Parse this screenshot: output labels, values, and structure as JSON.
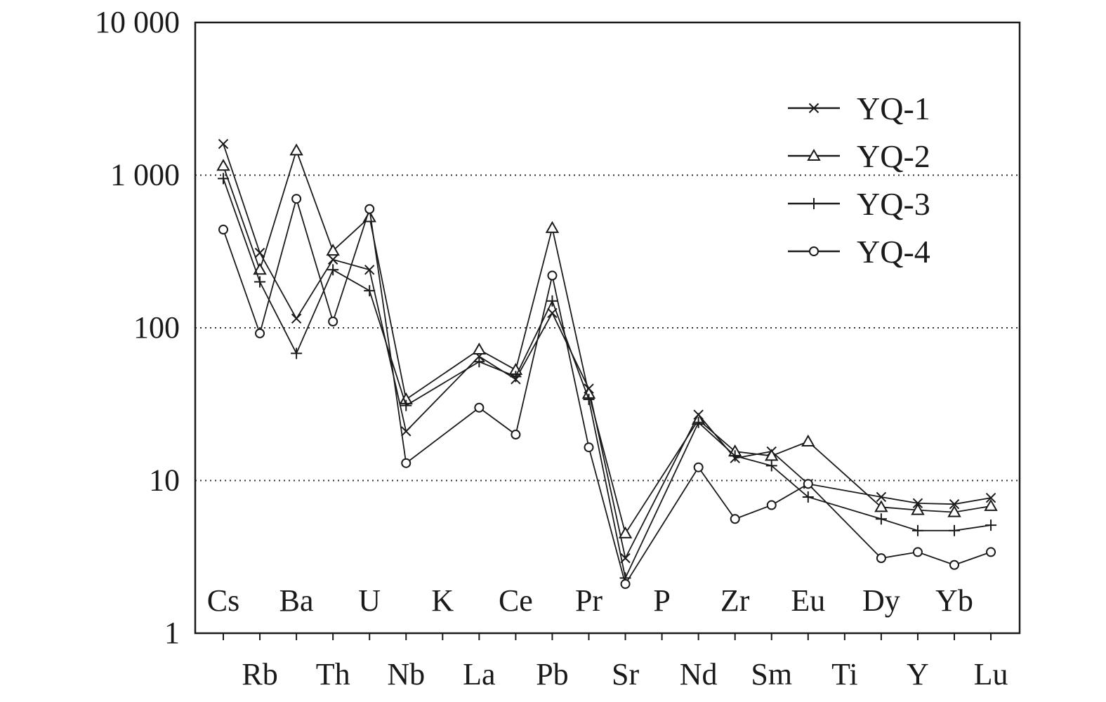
{
  "chart_data": {
    "type": "line",
    "title": "",
    "xlabel": "",
    "ylabel": "",
    "yscale": "log",
    "ylim": [
      1,
      10000
    ],
    "y_ticks": [
      {
        "value": 1,
        "label": "1"
      },
      {
        "value": 10,
        "label": "10"
      },
      {
        "value": 100,
        "label": "100"
      },
      {
        "value": 1000,
        "label": "1 000"
      },
      {
        "value": 10000,
        "label": "10 000"
      }
    ],
    "grid": "horizontal dotted at 10, 100, 1 000",
    "legend_position": "top-right",
    "categories": [
      "Cs",
      "Rb",
      "Ba",
      "Th",
      "U",
      "Nb",
      "K",
      "La",
      "Ce",
      "Pb",
      "Pr",
      "Sr",
      "P",
      "Nd",
      "Zr",
      "Sm",
      "Eu",
      "Ti",
      "Dy",
      "Y",
      "Yb",
      "Lu"
    ],
    "series": [
      {
        "name": "YQ-1",
        "marker": "x",
        "values": [
          1600,
          310,
          115,
          280,
          240,
          21,
          null,
          65,
          46,
          125,
          40,
          3.1,
          null,
          27,
          14,
          15.5,
          9.5,
          null,
          7.8,
          7.1,
          7.0,
          7.7
        ]
      },
      {
        "name": "YQ-2",
        "marker": "triangle",
        "values": [
          1150,
          240,
          1450,
          320,
          530,
          34,
          null,
          72,
          53,
          450,
          37,
          4.5,
          null,
          25,
          15.5,
          14.5,
          18,
          null,
          6.7,
          6.4,
          6.2,
          6.8
        ]
      },
      {
        "name": "YQ-3",
        "marker": "plus",
        "values": [
          950,
          200,
          68,
          240,
          175,
          31,
          null,
          60,
          48,
          150,
          34,
          2.3,
          null,
          24,
          14.5,
          12.5,
          7.8,
          null,
          5.6,
          4.7,
          4.7,
          5.1
        ]
      },
      {
        "name": "YQ-4",
        "marker": "circle",
        "values": [
          440,
          92,
          700,
          110,
          600,
          13,
          null,
          30,
          20,
          220,
          16.5,
          2.1,
          null,
          12.2,
          5.6,
          6.9,
          9.5,
          null,
          3.1,
          3.4,
          2.8,
          3.4
        ]
      }
    ]
  }
}
